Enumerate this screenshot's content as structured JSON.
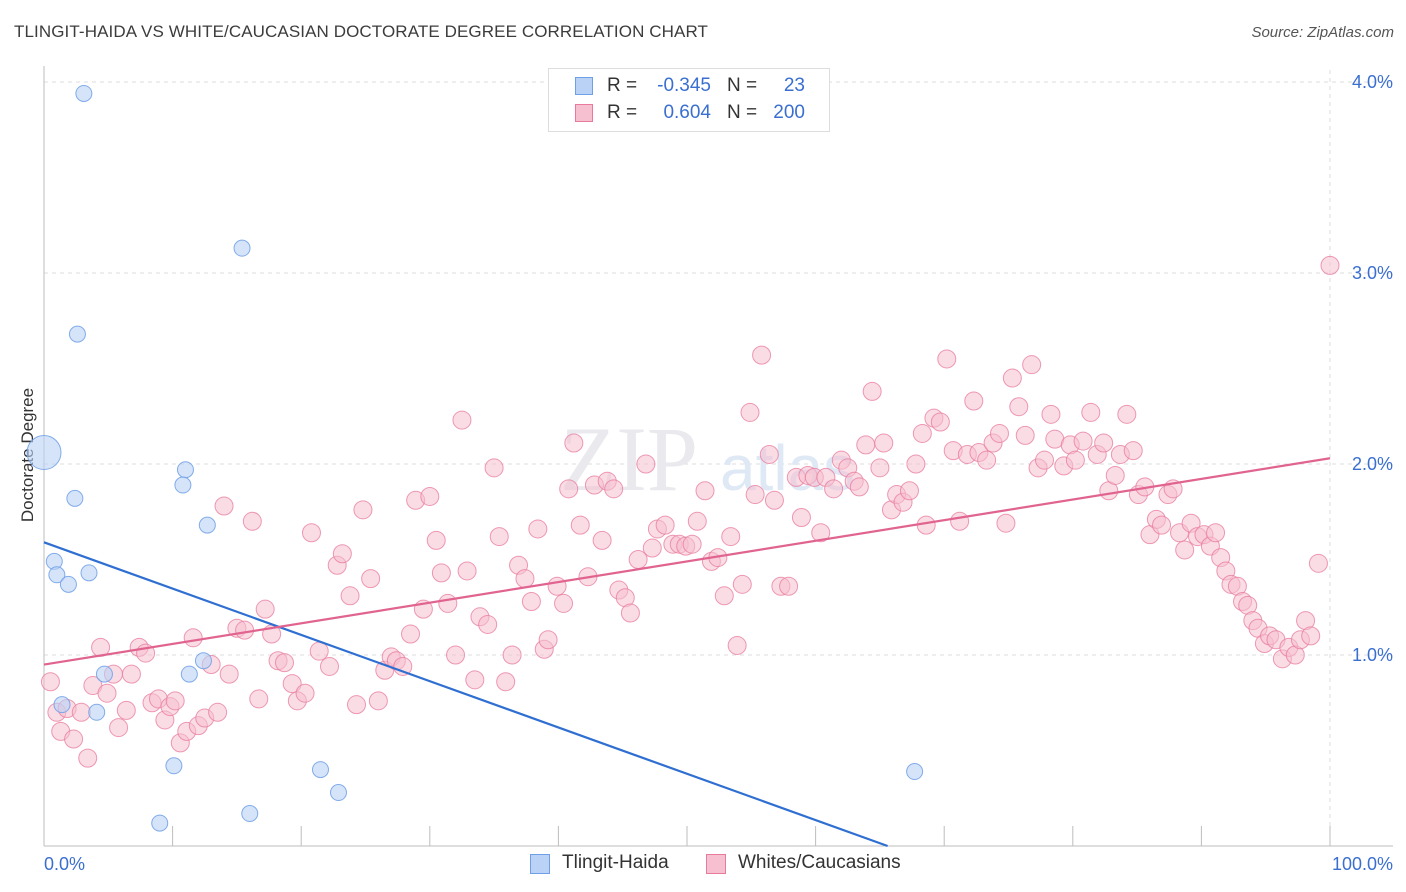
{
  "title": "TLINGIT-HAIDA VS WHITE/CAUCASIAN DOCTORATE DEGREE CORRELATION CHART",
  "source": "Source: ZipAtlas.com",
  "colors": {
    "blue": "#6f9fe6",
    "blue_fill": "#b9d2f5",
    "blue_line": "#2f6fd1",
    "pink": "#e87a9c",
    "pink_fill": "#f6c0d0",
    "pink_line": "#e0648f",
    "axis_text": "#3a6fd0"
  },
  "legend": {
    "rows": [
      {
        "r_label": "R =",
        "r_value": "-0.345",
        "n_label": "N =",
        "n_value": "23"
      },
      {
        "r_label": "R =",
        "r_value": "0.604",
        "n_label": "N =",
        "n_value": "200"
      }
    ]
  },
  "bottom_legend": {
    "series1": "Tlingit-Haida",
    "series2": "Whites/Caucasians"
  },
  "chart_data": {
    "type": "scatter",
    "title": "TLINGIT-HAIDA VS WHITE/CAUCASIAN DOCTORATE DEGREE CORRELATION CHART",
    "xlabel": "",
    "ylabel": "Doctorate Degree",
    "xlim": [
      0,
      100
    ],
    "ylim": [
      0,
      4.2
    ],
    "x_tick_labels": {
      "left": "0.0%",
      "right": "100.0%"
    },
    "y_ticks": [
      {
        "value": 1.0,
        "label": "1.0%"
      },
      {
        "value": 2.0,
        "label": "2.0%"
      },
      {
        "value": 3.0,
        "label": "3.0%"
      },
      {
        "value": 4.0,
        "label": "4.0%"
      }
    ],
    "series": [
      {
        "name": "Tlingit-Haida",
        "r": -0.345,
        "n": 23,
        "trend": {
          "x0": 0,
          "y0": 1.59,
          "x1": 65.6,
          "y1": 0.0
        },
        "points": [
          [
            3.1,
            3.94
          ],
          [
            0.0,
            2.06
          ],
          [
            15.4,
            3.13
          ],
          [
            2.6,
            2.68
          ],
          [
            2.4,
            1.82
          ],
          [
            11.0,
            1.97
          ],
          [
            10.8,
            1.89
          ],
          [
            12.7,
            1.68
          ],
          [
            0.8,
            1.49
          ],
          [
            1.0,
            1.42
          ],
          [
            1.9,
            1.37
          ],
          [
            3.5,
            1.43
          ],
          [
            4.7,
            0.9
          ],
          [
            11.3,
            0.9
          ],
          [
            12.4,
            0.97
          ],
          [
            1.4,
            0.74
          ],
          [
            4.1,
            0.7
          ],
          [
            10.1,
            0.42
          ],
          [
            21.5,
            0.4
          ],
          [
            67.7,
            0.39
          ],
          [
            22.9,
            0.28
          ],
          [
            9.0,
            0.12
          ],
          [
            16.0,
            0.17
          ]
        ]
      },
      {
        "name": "Whites/Caucasians",
        "r": 0.604,
        "n": 200,
        "trend": {
          "x0": 0,
          "y0": 0.95,
          "x1": 100,
          "y1": 2.03
        },
        "points": [
          [
            0.5,
            0.86
          ],
          [
            1.0,
            0.7
          ],
          [
            1.3,
            0.6
          ],
          [
            1.8,
            0.72
          ],
          [
            2.3,
            0.56
          ],
          [
            2.9,
            0.7
          ],
          [
            3.4,
            0.46
          ],
          [
            3.8,
            0.84
          ],
          [
            4.4,
            1.04
          ],
          [
            4.9,
            0.8
          ],
          [
            5.4,
            0.9
          ],
          [
            5.8,
            0.62
          ],
          [
            6.4,
            0.71
          ],
          [
            6.8,
            0.9
          ],
          [
            7.4,
            1.04
          ],
          [
            7.9,
            1.01
          ],
          [
            8.4,
            0.75
          ],
          [
            8.9,
            0.77
          ],
          [
            9.4,
            0.66
          ],
          [
            9.8,
            0.73
          ],
          [
            10.2,
            0.76
          ],
          [
            10.6,
            0.54
          ],
          [
            11.1,
            0.6
          ],
          [
            11.6,
            1.09
          ],
          [
            12.0,
            0.63
          ],
          [
            12.5,
            0.67
          ],
          [
            13.0,
            0.95
          ],
          [
            13.5,
            0.7
          ],
          [
            14.0,
            1.78
          ],
          [
            14.4,
            0.9
          ],
          [
            15.0,
            1.14
          ],
          [
            15.6,
            1.13
          ],
          [
            16.2,
            1.7
          ],
          [
            16.7,
            0.77
          ],
          [
            17.2,
            1.24
          ],
          [
            17.7,
            1.11
          ],
          [
            18.2,
            0.97
          ],
          [
            18.7,
            0.96
          ],
          [
            19.3,
            0.85
          ],
          [
            19.7,
            0.76
          ],
          [
            20.3,
            0.8
          ],
          [
            20.8,
            1.64
          ],
          [
            21.4,
            1.02
          ],
          [
            22.2,
            0.94
          ],
          [
            22.8,
            1.47
          ],
          [
            23.2,
            1.53
          ],
          [
            23.8,
            1.31
          ],
          [
            24.3,
            0.74
          ],
          [
            24.8,
            1.76
          ],
          [
            25.4,
            1.4
          ],
          [
            26.0,
            0.76
          ],
          [
            26.5,
            0.92
          ],
          [
            27.0,
            0.99
          ],
          [
            27.4,
            0.97
          ],
          [
            27.9,
            0.94
          ],
          [
            28.5,
            1.11
          ],
          [
            28.9,
            1.81
          ],
          [
            29.5,
            1.24
          ],
          [
            30.0,
            1.83
          ],
          [
            30.5,
            1.6
          ],
          [
            30.9,
            1.43
          ],
          [
            31.4,
            1.27
          ],
          [
            32.0,
            1.0
          ],
          [
            32.5,
            2.23
          ],
          [
            32.9,
            1.44
          ],
          [
            33.5,
            0.87
          ],
          [
            33.9,
            1.2
          ],
          [
            34.5,
            1.16
          ],
          [
            35.0,
            1.98
          ],
          [
            35.4,
            1.62
          ],
          [
            35.9,
            0.86
          ],
          [
            36.4,
            1.0
          ],
          [
            36.9,
            1.47
          ],
          [
            37.4,
            1.4
          ],
          [
            37.9,
            1.28
          ],
          [
            38.4,
            1.66
          ],
          [
            38.9,
            1.03
          ],
          [
            39.2,
            1.08
          ],
          [
            39.9,
            1.36
          ],
          [
            40.4,
            1.27
          ],
          [
            40.8,
            1.87
          ],
          [
            41.2,
            2.11
          ],
          [
            41.7,
            1.68
          ],
          [
            42.3,
            1.41
          ],
          [
            42.8,
            1.89
          ],
          [
            43.4,
            1.6
          ],
          [
            43.8,
            1.91
          ],
          [
            44.3,
            1.87
          ],
          [
            44.7,
            1.34
          ],
          [
            45.2,
            1.3
          ],
          [
            45.6,
            1.22
          ],
          [
            46.2,
            1.5
          ],
          [
            46.8,
            2.0
          ],
          [
            47.3,
            1.56
          ],
          [
            47.7,
            1.66
          ],
          [
            48.3,
            1.68
          ],
          [
            48.9,
            1.58
          ],
          [
            49.4,
            1.58
          ],
          [
            49.9,
            1.57
          ],
          [
            50.4,
            1.58
          ],
          [
            50.8,
            1.7
          ],
          [
            51.4,
            1.86
          ],
          [
            51.9,
            1.49
          ],
          [
            52.4,
            1.51
          ],
          [
            52.9,
            1.31
          ],
          [
            53.4,
            1.62
          ],
          [
            53.9,
            1.05
          ],
          [
            54.3,
            1.37
          ],
          [
            54.9,
            2.27
          ],
          [
            55.3,
            1.84
          ],
          [
            55.8,
            2.57
          ],
          [
            56.4,
            2.05
          ],
          [
            56.8,
            1.81
          ],
          [
            57.3,
            1.36
          ],
          [
            57.9,
            1.36
          ],
          [
            58.5,
            1.93
          ],
          [
            58.9,
            1.72
          ],
          [
            59.4,
            1.94
          ],
          [
            59.9,
            1.93
          ],
          [
            60.4,
            1.64
          ],
          [
            60.8,
            1.93
          ],
          [
            61.4,
            1.87
          ],
          [
            62.0,
            2.02
          ],
          [
            62.5,
            1.98
          ],
          [
            63.0,
            1.91
          ],
          [
            63.4,
            1.88
          ],
          [
            63.9,
            2.1
          ],
          [
            64.4,
            2.38
          ],
          [
            65.0,
            1.98
          ],
          [
            65.3,
            2.11
          ],
          [
            65.9,
            1.76
          ],
          [
            66.3,
            1.84
          ],
          [
            66.8,
            1.8
          ],
          [
            67.3,
            1.86
          ],
          [
            67.8,
            2.0
          ],
          [
            68.3,
            2.16
          ],
          [
            68.6,
            1.68
          ],
          [
            69.2,
            2.24
          ],
          [
            69.7,
            2.22
          ],
          [
            70.2,
            2.55
          ],
          [
            70.7,
            2.07
          ],
          [
            71.2,
            1.7
          ],
          [
            71.8,
            2.05
          ],
          [
            72.3,
            2.33
          ],
          [
            72.7,
            2.06
          ],
          [
            73.3,
            2.02
          ],
          [
            73.8,
            2.11
          ],
          [
            74.3,
            2.16
          ],
          [
            74.8,
            1.69
          ],
          [
            75.3,
            2.45
          ],
          [
            75.8,
            2.3
          ],
          [
            76.3,
            2.15
          ],
          [
            76.8,
            2.52
          ],
          [
            77.3,
            1.98
          ],
          [
            77.8,
            2.02
          ],
          [
            78.3,
            2.26
          ],
          [
            78.6,
            2.13
          ],
          [
            79.3,
            1.99
          ],
          [
            79.8,
            2.1
          ],
          [
            80.2,
            2.02
          ],
          [
            80.8,
            2.12
          ],
          [
            81.4,
            2.27
          ],
          [
            81.9,
            2.05
          ],
          [
            82.4,
            2.11
          ],
          [
            82.8,
            1.86
          ],
          [
            83.3,
            1.94
          ],
          [
            83.7,
            2.05
          ],
          [
            84.2,
            2.26
          ],
          [
            84.7,
            2.07
          ],
          [
            85.1,
            1.84
          ],
          [
            85.6,
            1.88
          ],
          [
            86.0,
            1.63
          ],
          [
            86.5,
            1.71
          ],
          [
            86.9,
            1.68
          ],
          [
            87.4,
            1.84
          ],
          [
            87.8,
            1.87
          ],
          [
            88.3,
            1.64
          ],
          [
            88.7,
            1.55
          ],
          [
            89.2,
            1.69
          ],
          [
            89.7,
            1.62
          ],
          [
            90.2,
            1.63
          ],
          [
            90.7,
            1.57
          ],
          [
            91.1,
            1.64
          ],
          [
            91.5,
            1.51
          ],
          [
            91.9,
            1.44
          ],
          [
            92.3,
            1.37
          ],
          [
            92.8,
            1.36
          ],
          [
            93.2,
            1.28
          ],
          [
            93.6,
            1.26
          ],
          [
            94.0,
            1.18
          ],
          [
            94.4,
            1.14
          ],
          [
            94.9,
            1.06
          ],
          [
            95.3,
            1.1
          ],
          [
            95.8,
            1.08
          ],
          [
            96.3,
            0.98
          ],
          [
            96.8,
            1.04
          ],
          [
            97.3,
            1.0
          ],
          [
            97.7,
            1.08
          ],
          [
            98.1,
            1.18
          ],
          [
            98.5,
            1.1
          ],
          [
            99.1,
            1.48
          ],
          [
            100.0,
            3.04
          ]
        ]
      }
    ]
  }
}
